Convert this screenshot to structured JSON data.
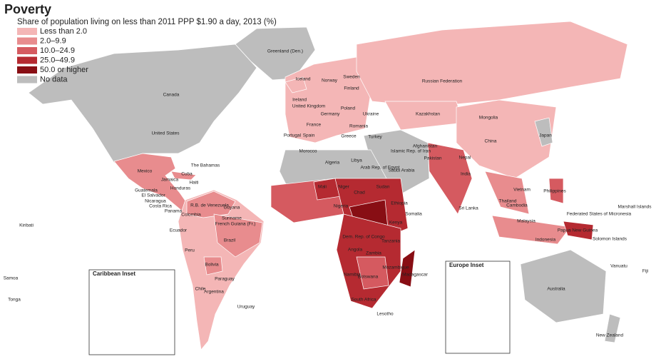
{
  "title": "Poverty",
  "subtitle": "Share of population living on less than 2011 PPP $1.90 a day, 2013 (%)",
  "legend": [
    {
      "label": "Less than 2.0",
      "color": "#f4b6b6"
    },
    {
      "label": "2.0–9.9",
      "color": "#e88c8e"
    },
    {
      "label": "10.0–24.9",
      "color": "#d55a60"
    },
    {
      "label": "25.0–49.9",
      "color": "#b52a31"
    },
    {
      "label": "50.0 or higher",
      "color": "#880e14"
    },
    {
      "label": "No data",
      "color": "#bdbdbd"
    }
  ],
  "insets": [
    "Caribbean Inset",
    "Europe Inset"
  ],
  "labels": [
    "Greenland (Den.)",
    "Canada",
    "United States",
    "Mexico",
    "Cuba",
    "The Bahamas",
    "Haiti",
    "Jamaica",
    "Guatemala",
    "Honduras",
    "El Salvador",
    "Nicaragua",
    "Costa Rica",
    "Panama",
    "Colombia",
    "R.B. de Venezuela",
    "Guyana",
    "Suriname",
    "French Guiana (Fr.)",
    "Ecuador",
    "Peru",
    "Brazil",
    "Bolivia",
    "Paraguay",
    "Chile",
    "Argentina",
    "Uruguay",
    "Kiribati",
    "Samoa",
    "Tonga",
    "Iceland",
    "Norway",
    "Sweden",
    "Finland",
    "Russian Federation",
    "United Kingdom",
    "Ireland",
    "France",
    "Spain",
    "Portugal",
    "Germany",
    "Poland",
    "Ukraine",
    "Romania",
    "Turkey",
    "Greece",
    "Kazakhstan",
    "Mongolia",
    "China",
    "Japan",
    "Afghanistan",
    "Pakistan",
    "India",
    "Nepal",
    "Sri Lanka",
    "Islamic Rep. of Iran",
    "Saudi Arabia",
    "Arab Rep. of Egypt",
    "Morocco",
    "Algeria",
    "Libya",
    "Mali",
    "Niger",
    "Chad",
    "Sudan",
    "Ethiopia",
    "Nigeria",
    "Dem. Rep. of Congo",
    "Kenya",
    "Tanzania",
    "Angola",
    "Zambia",
    "Mozambique",
    "Madagascar",
    "Namibia",
    "Botswana",
    "South Africa",
    "Lesotho",
    "Somalia",
    "Thailand",
    "Vietnam",
    "Cambodia",
    "Philippines",
    "Malaysia",
    "Indonesia",
    "Papua New Guinea",
    "Australia",
    "New Zealand",
    "Federated States of Micronesia",
    "Marshall Islands",
    "Solomon Islands",
    "Vanuatu",
    "Fiji"
  ]
}
